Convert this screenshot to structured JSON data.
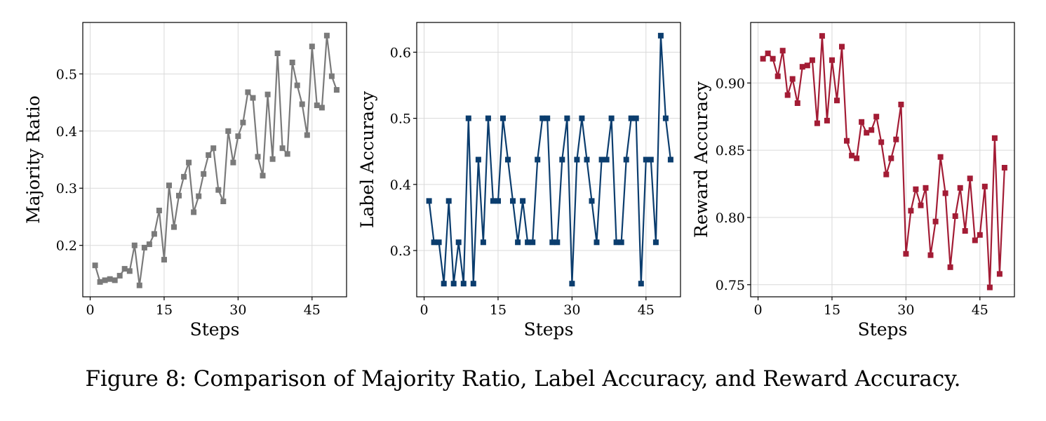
{
  "caption": "Figure 8: Comparison of Majority Ratio, Label Accuracy, and Reward Accuracy.",
  "chart_data": [
    {
      "type": "line",
      "name": "majority-ratio",
      "xlabel": "Steps",
      "ylabel": "Majority Ratio",
      "color": "#7a7a7a",
      "marker": "square",
      "grid": true,
      "xlim": [
        -1.5,
        52
      ],
      "ylim": [
        0.11,
        0.59
      ],
      "xticks": [
        0,
        15,
        30,
        45
      ],
      "xtick_labels": [
        "0",
        "15",
        "30",
        "45"
      ],
      "yticks": [
        0.2,
        0.3,
        0.4,
        0.5
      ],
      "ytick_labels": [
        "0.2",
        "0.3",
        "0.4",
        "0.5"
      ],
      "x": [
        1,
        2,
        3,
        4,
        5,
        6,
        7,
        8,
        9,
        10,
        11,
        12,
        13,
        14,
        15,
        16,
        17,
        18,
        19,
        20,
        21,
        22,
        23,
        24,
        25,
        26,
        27,
        28,
        29,
        30,
        31,
        32,
        33,
        34,
        35,
        36,
        37,
        38,
        39,
        40,
        41,
        42,
        43,
        44,
        45,
        46,
        47,
        48,
        49,
        50
      ],
      "values": [
        0.165,
        0.136,
        0.139,
        0.141,
        0.139,
        0.147,
        0.159,
        0.155,
        0.2,
        0.13,
        0.196,
        0.202,
        0.22,
        0.261,
        0.175,
        0.305,
        0.232,
        0.287,
        0.32,
        0.345,
        0.258,
        0.286,
        0.325,
        0.358,
        0.37,
        0.297,
        0.277,
        0.4,
        0.345,
        0.391,
        0.415,
        0.468,
        0.458,
        0.355,
        0.322,
        0.464,
        0.351,
        0.536,
        0.37,
        0.36,
        0.52,
        0.48,
        0.447,
        0.393,
        0.548,
        0.445,
        0.441,
        0.567,
        0.496,
        0.472
      ]
    },
    {
      "type": "line",
      "name": "label-accuracy",
      "xlabel": "Steps",
      "ylabel": "Label Accuracy",
      "color": "#0b3d6e",
      "marker": "square",
      "grid": true,
      "xlim": [
        -1.5,
        52
      ],
      "ylim": [
        0.23,
        0.645
      ],
      "xticks": [
        0,
        15,
        30,
        45
      ],
      "xtick_labels": [
        "0",
        "15",
        "30",
        "45"
      ],
      "yticks": [
        0.3,
        0.4,
        0.5,
        0.6
      ],
      "ytick_labels": [
        "0.3",
        "0.4",
        "0.5",
        "0.6"
      ],
      "x": [
        1,
        2,
        3,
        4,
        5,
        6,
        7,
        8,
        9,
        10,
        11,
        12,
        13,
        14,
        15,
        16,
        17,
        18,
        19,
        20,
        21,
        22,
        23,
        24,
        25,
        26,
        27,
        28,
        29,
        30,
        31,
        32,
        33,
        34,
        35,
        36,
        37,
        38,
        39,
        40,
        41,
        42,
        43,
        44,
        45,
        46,
        47,
        48,
        49,
        50
      ],
      "values": [
        0.375,
        0.3125,
        0.3125,
        0.25,
        0.375,
        0.25,
        0.3125,
        0.25,
        0.5,
        0.25,
        0.4375,
        0.3125,
        0.5,
        0.375,
        0.375,
        0.5,
        0.4375,
        0.375,
        0.3125,
        0.375,
        0.3125,
        0.3125,
        0.4375,
        0.5,
        0.5,
        0.3125,
        0.3125,
        0.4375,
        0.5,
        0.25,
        0.4375,
        0.5,
        0.4375,
        0.375,
        0.3125,
        0.4375,
        0.4375,
        0.5,
        0.3125,
        0.3125,
        0.4375,
        0.5,
        0.5,
        0.25,
        0.4375,
        0.4375,
        0.3125,
        0.625,
        0.5,
        0.4375
      ]
    },
    {
      "type": "line",
      "name": "reward-accuracy",
      "xlabel": "Steps",
      "ylabel": "Reward Accuracy",
      "color": "#a31c35",
      "marker": "square",
      "grid": true,
      "xlim": [
        -1.5,
        52
      ],
      "ylim": [
        0.741,
        0.945
      ],
      "xticks": [
        0,
        15,
        30,
        45
      ],
      "xtick_labels": [
        "0",
        "15",
        "30",
        "45"
      ],
      "yticks": [
        0.75,
        0.8,
        0.85,
        0.9
      ],
      "ytick_labels": [
        "0.75",
        "0.80",
        "0.85",
        "0.90"
      ],
      "x": [
        1,
        2,
        3,
        4,
        5,
        6,
        7,
        8,
        9,
        10,
        11,
        12,
        13,
        14,
        15,
        16,
        17,
        18,
        19,
        20,
        21,
        22,
        23,
        24,
        25,
        26,
        27,
        28,
        29,
        30,
        31,
        32,
        33,
        34,
        35,
        36,
        37,
        38,
        39,
        40,
        41,
        42,
        43,
        44,
        45,
        46,
        47,
        48,
        49,
        50
      ],
      "values": [
        0.918,
        0.922,
        0.918,
        0.905,
        0.924,
        0.891,
        0.903,
        0.885,
        0.912,
        0.913,
        0.917,
        0.87,
        0.935,
        0.872,
        0.917,
        0.887,
        0.927,
        0.857,
        0.846,
        0.844,
        0.871,
        0.863,
        0.865,
        0.875,
        0.856,
        0.832,
        0.844,
        0.858,
        0.884,
        0.773,
        0.805,
        0.821,
        0.809,
        0.822,
        0.772,
        0.797,
        0.845,
        0.818,
        0.763,
        0.801,
        0.822,
        0.79,
        0.829,
        0.783,
        0.787,
        0.823,
        0.748,
        0.859,
        0.758,
        0.837
      ]
    }
  ]
}
